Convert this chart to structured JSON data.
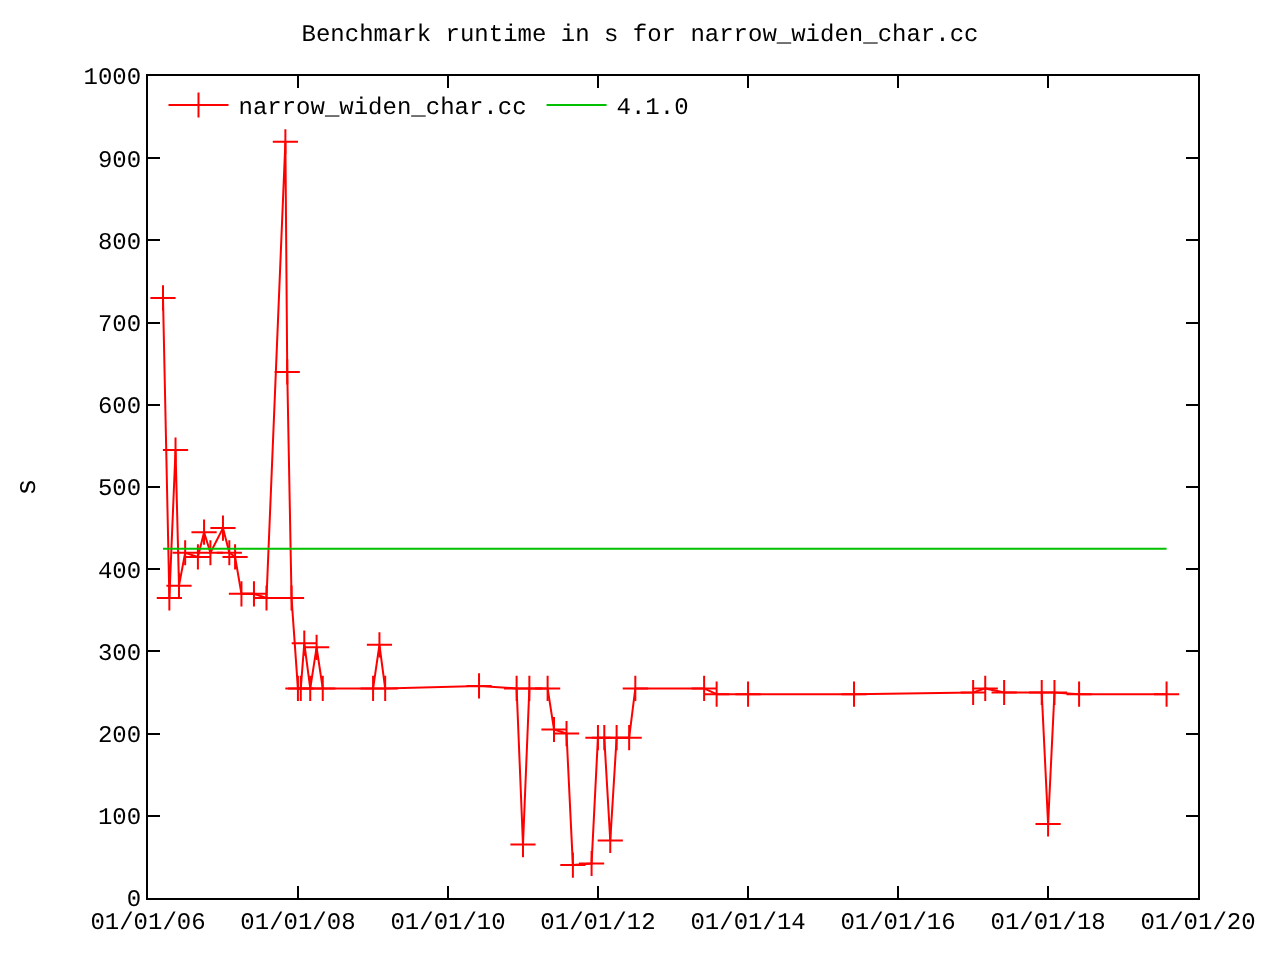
{
  "chart_data": {
    "type": "line",
    "title": "Benchmark runtime in s for narrow_widen_char.cc",
    "ylabel": "s",
    "xlim": [
      "2006-01-01",
      "2020-01-01"
    ],
    "xticks": [
      {
        "value": "2006-01-01",
        "label": "01/01/06"
      },
      {
        "value": "2008-01-01",
        "label": "01/01/08"
      },
      {
        "value": "2010-01-01",
        "label": "01/01/10"
      },
      {
        "value": "2012-01-01",
        "label": "01/01/12"
      },
      {
        "value": "2014-01-01",
        "label": "01/01/14"
      },
      {
        "value": "2016-01-01",
        "label": "01/01/16"
      },
      {
        "value": "2018-01-01",
        "label": "01/01/18"
      },
      {
        "value": "2020-01-01",
        "label": "01/01/20"
      }
    ],
    "ylim": [
      0,
      1000
    ],
    "yticks": [
      0,
      100,
      200,
      300,
      400,
      500,
      600,
      700,
      800,
      900,
      1000
    ],
    "grid": false,
    "legend": "top left",
    "series": [
      {
        "name": "narrow_widen_char.cc",
        "color": "#ff0000",
        "marker": "cross",
        "line_style": "solid",
        "x": [
          "2006-03-15",
          "2006-04-15",
          "2006-05-15",
          "2006-06-01",
          "2006-07-01",
          "2006-09-01",
          "2006-10-01",
          "2006-11-01",
          "2007-01-01",
          "2007-02-01",
          "2007-03-01",
          "2007-04-01",
          "2007-06-01",
          "2007-08-01",
          "2007-11-01",
          "2007-11-10",
          "2007-12-01",
          "2008-01-01",
          "2008-01-15",
          "2008-02-01",
          "2008-03-01",
          "2008-04-01",
          "2008-05-01",
          "2009-01-01",
          "2009-02-01",
          "2009-03-01",
          "2010-06-01",
          "2010-12-01",
          "2011-01-01",
          "2011-02-01",
          "2011-05-01",
          "2011-06-01",
          "2011-08-01",
          "2011-09-01",
          "2011-12-01",
          "2012-01-01",
          "2012-02-01",
          "2012-03-01",
          "2012-04-01",
          "2012-06-01",
          "2012-07-01",
          "2013-06-01",
          "2013-08-01",
          "2014-01-01",
          "2015-06-01",
          "2017-01-01",
          "2017-03-01",
          "2017-06-01",
          "2017-12-01",
          "2018-01-01",
          "2018-02-01",
          "2018-06-01",
          "2019-08-01"
        ],
        "values": [
          730,
          365,
          545,
          380,
          420,
          415,
          445,
          420,
          450,
          420,
          415,
          370,
          370,
          365,
          920,
          640,
          365,
          255,
          255,
          310,
          255,
          305,
          255,
          255,
          308,
          255,
          258,
          255,
          65,
          255,
          255,
          205,
          200,
          40,
          42,
          195,
          195,
          70,
          195,
          195,
          255,
          255,
          248,
          248,
          248,
          250,
          255,
          250,
          250,
          90,
          250,
          248,
          248
        ]
      },
      {
        "name": "4.1.0",
        "color": "#00c000",
        "marker": "none",
        "line_style": "solid",
        "x": [
          "2006-03-15",
          "2019-08-01"
        ],
        "values": [
          425,
          425
        ]
      }
    ]
  }
}
